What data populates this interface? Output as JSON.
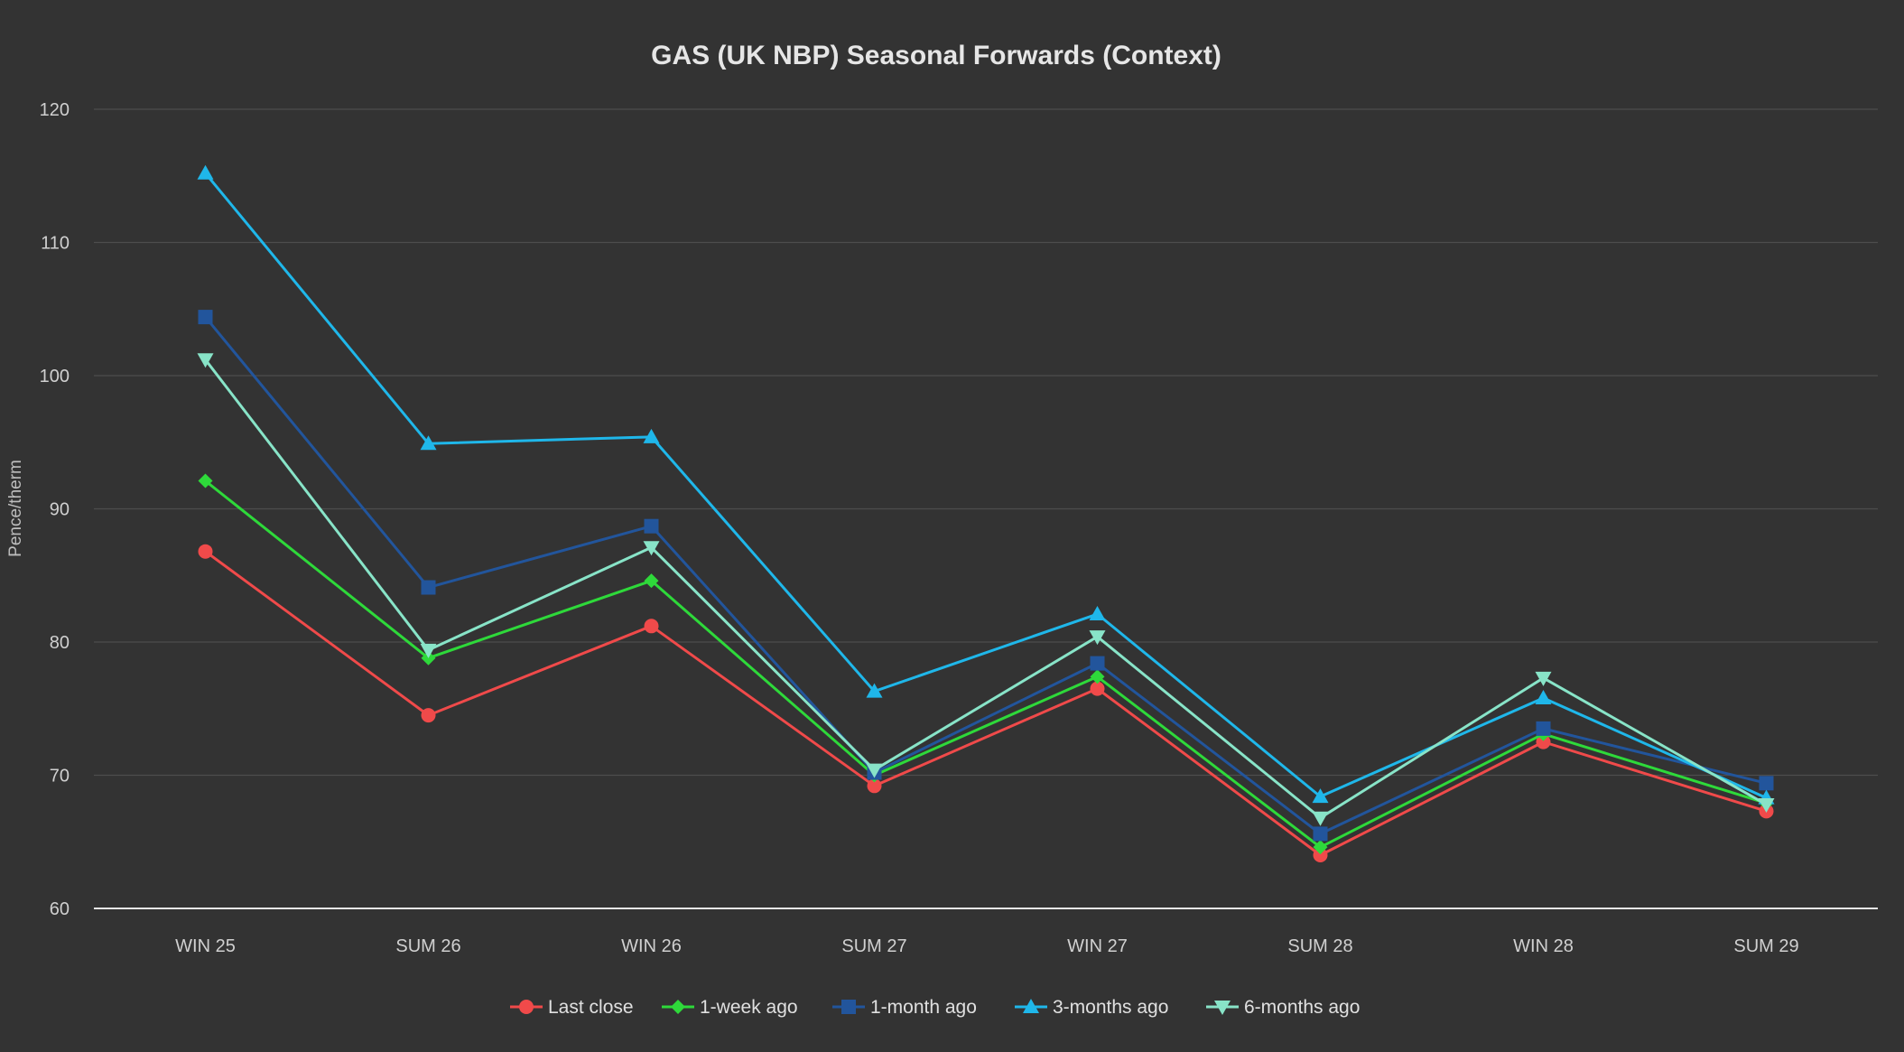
{
  "chart_data": {
    "type": "line",
    "title": "GAS (UK NBP) Seasonal Forwards (Context)",
    "xlabel": "",
    "ylabel": "Pence/therm",
    "ylim": [
      60,
      120
    ],
    "yticks": [
      60,
      70,
      80,
      90,
      100,
      110,
      120
    ],
    "grid": true,
    "legend_position": "bottom-center",
    "categories": [
      "WIN 25",
      "SUM 26",
      "WIN 26",
      "SUM 27",
      "WIN 27",
      "SUM 28",
      "WIN 28",
      "SUM 29"
    ],
    "series": [
      {
        "name": "Last close",
        "color": "#f04a4a",
        "marker": "circle",
        "values": [
          86.8,
          74.5,
          81.2,
          69.2,
          76.5,
          64.0,
          72.5,
          67.3
        ]
      },
      {
        "name": "1-week ago",
        "color": "#2ed93a",
        "marker": "diamond",
        "values": [
          92.1,
          78.8,
          84.6,
          70.0,
          77.4,
          64.6,
          73.1,
          67.9
        ]
      },
      {
        "name": "1-month ago",
        "color": "#22559c",
        "marker": "square",
        "values": [
          104.4,
          84.1,
          88.7,
          70.2,
          78.4,
          65.6,
          73.5,
          69.4
        ]
      },
      {
        "name": "3-months ago",
        "color": "#1fb7ea",
        "marker": "triangle-up",
        "values": [
          115.2,
          94.9,
          95.4,
          76.3,
          82.1,
          68.4,
          75.8,
          68.3
        ]
      },
      {
        "name": "6-months ago",
        "color": "#88e4c8",
        "marker": "triangle-down",
        "values": [
          101.2,
          79.4,
          87.1,
          70.4,
          80.4,
          66.8,
          77.3,
          67.8
        ]
      }
    ]
  }
}
